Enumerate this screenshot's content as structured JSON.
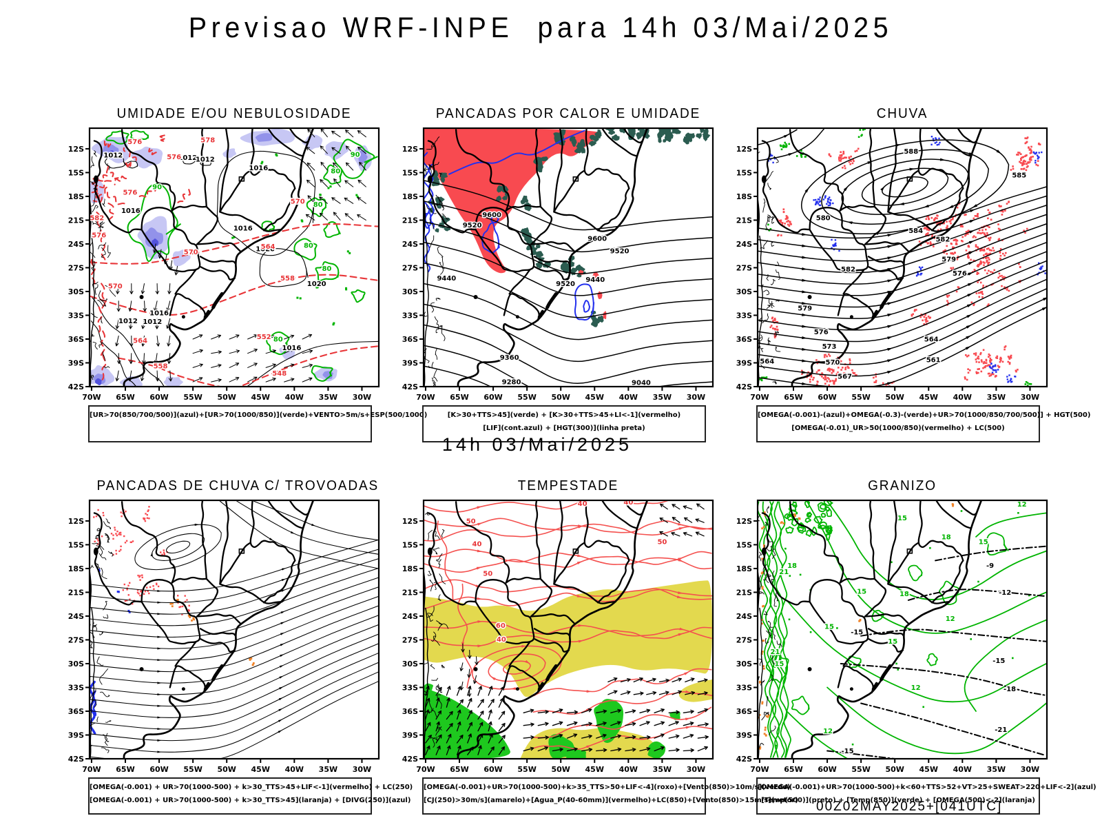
{
  "page_title": "Previsao WRF-INPE  para 14h 03/Mai/2025",
  "valid_time_label": "14h 03/Mai/2025",
  "model_run_label": "00Z02MAY2025+[041UTC]",
  "axis": {
    "lat_ticks": [
      "12S",
      "15S",
      "18S",
      "21S",
      "24S",
      "27S",
      "30S",
      "33S",
      "36S",
      "39S",
      "42S"
    ],
    "lon_ticks": [
      "70W",
      "65W",
      "60W",
      "55W",
      "50W",
      "45W",
      "40W",
      "35W",
      "30W"
    ]
  },
  "colors": {
    "red": "#e83538",
    "salmon_fill": "#f84a50",
    "teal": "#2b5c50",
    "green": "#00b400",
    "green_fill": "#1ec81e",
    "blue": "#2330ee",
    "violet_light": "#c7c7f4",
    "violet_mid": "#9292ea",
    "violet_dark": "#5353dd",
    "yellow": "#e3d94e",
    "orange": "#f08226",
    "stream_red": "#f4504e",
    "black": "#000000"
  },
  "panels": [
    {
      "title": "UMIDADE E/OU NEBULOSIDADE",
      "legend_lines": [
        "[UR>70(850/700/500)](azul)+[UR>70(1000/850)](verde)+VENTO>5m/s+ESP(500/1000)"
      ],
      "contour_labels": [
        {
          "t": "1012",
          "lon": 66.8,
          "lat": 13.1,
          "c": "k"
        },
        {
          "t": "1012",
          "lon": 55.8,
          "lat": 13.4,
          "c": "k"
        },
        {
          "t": "1012",
          "lon": 53.2,
          "lat": 13.6,
          "c": "k"
        },
        {
          "t": "1016",
          "lon": 45.3,
          "lat": 14.7,
          "c": "k"
        },
        {
          "t": "1016",
          "lon": 64.2,
          "lat": 20.1,
          "c": "k"
        },
        {
          "t": "1016",
          "lon": 47.6,
          "lat": 22.3,
          "c": "k"
        },
        {
          "t": "1020",
          "lon": 44.3,
          "lat": 24.9,
          "c": "k"
        },
        {
          "t": "1020",
          "lon": 36.7,
          "lat": 29.3,
          "c": "k"
        },
        {
          "t": "1016",
          "lon": 60.0,
          "lat": 33.0,
          "c": "k"
        },
        {
          "t": "1012",
          "lon": 64.6,
          "lat": 34.0,
          "c": "k"
        },
        {
          "t": "1012",
          "lon": 61.0,
          "lat": 34.1,
          "c": "k"
        },
        {
          "t": "1016",
          "lon": 40.4,
          "lat": 37.4,
          "c": "k"
        },
        {
          "t": "576",
          "lon": 63.6,
          "lat": 11.4,
          "c": "r"
        },
        {
          "t": "578",
          "lon": 52.8,
          "lat": 11.2,
          "c": "r"
        },
        {
          "t": "576",
          "lon": 57.8,
          "lat": 13.3,
          "c": "r"
        },
        {
          "t": "576",
          "lon": 64.3,
          "lat": 17.8,
          "c": "r"
        },
        {
          "t": "582",
          "lon": 69.2,
          "lat": 21.0,
          "c": "r"
        },
        {
          "t": "576",
          "lon": 68.9,
          "lat": 23.2,
          "c": "r"
        },
        {
          "t": "570",
          "lon": 66.5,
          "lat": 29.6,
          "c": "r"
        },
        {
          "t": "570",
          "lon": 55.3,
          "lat": 25.3,
          "c": "r"
        },
        {
          "t": "570",
          "lon": 39.5,
          "lat": 18.9,
          "c": "r"
        },
        {
          "t": "564",
          "lon": 43.9,
          "lat": 24.6,
          "c": "r"
        },
        {
          "t": "558",
          "lon": 41.0,
          "lat": 28.6,
          "c": "r"
        },
        {
          "t": "564",
          "lon": 62.8,
          "lat": 36.5,
          "c": "r"
        },
        {
          "t": "558",
          "lon": 59.8,
          "lat": 39.7,
          "c": "r"
        },
        {
          "t": "552",
          "lon": 44.5,
          "lat": 36.0,
          "c": "r"
        },
        {
          "t": "548",
          "lon": 42.2,
          "lat": 40.6,
          "c": "r"
        },
        {
          "t": "90",
          "lon": 31.0,
          "lat": 13.0,
          "c": "g"
        },
        {
          "t": "80",
          "lon": 33.9,
          "lat": 15.1,
          "c": "g"
        },
        {
          "t": "80",
          "lon": 36.5,
          "lat": 19.3,
          "c": "g"
        },
        {
          "t": "80",
          "lon": 37.9,
          "lat": 24.5,
          "c": "g"
        },
        {
          "t": "80",
          "lon": 35.2,
          "lat": 27.4,
          "c": "g"
        },
        {
          "t": "80",
          "lon": 42.4,
          "lat": 36.3,
          "c": "g"
        },
        {
          "t": "90",
          "lon": 60.3,
          "lat": 17.1,
          "c": "g"
        }
      ]
    },
    {
      "title": "PANCADAS POR CALOR E UMIDADE",
      "legend_lines": [
        "[K>30+TTS>45](verde) + [K>30+TTS>45+LI<-1](vermelho)",
        "[LIF](cont.azul) + [HGT(300)](linha preta)"
      ],
      "contour_labels": [
        {
          "t": "9600",
          "lon": 60.2,
          "lat": 20.6,
          "c": "k"
        },
        {
          "t": "9520",
          "lon": 63.1,
          "lat": 21.9,
          "c": "k"
        },
        {
          "t": "9600",
          "lon": 44.6,
          "lat": 23.6,
          "c": "k"
        },
        {
          "t": "9520",
          "lon": 49.3,
          "lat": 29.3,
          "c": "k"
        },
        {
          "t": "9520",
          "lon": 41.3,
          "lat": 25.2,
          "c": "k"
        },
        {
          "t": "9440",
          "lon": 66.9,
          "lat": 28.6,
          "c": "k"
        },
        {
          "t": "9440",
          "lon": 44.9,
          "lat": 28.8,
          "c": "k"
        },
        {
          "t": "9360",
          "lon": 57.6,
          "lat": 38.6,
          "c": "k"
        },
        {
          "t": "9280",
          "lon": 57.3,
          "lat": 41.7,
          "c": "k"
        },
        {
          "t": "9040",
          "lon": 38.1,
          "lat": 41.8,
          "c": "k"
        }
      ]
    },
    {
      "title": "CHUVA",
      "legend_lines": [
        "[OMEGA(-0.001)-(azul)+OMEGA(-0.3)-(verde)+UR>70(1000/850/700/500)]  +  HGT(500)",
        "[OMEGA(-0.01)_UR>50(1000/850)(vermelho)  +  LC(500)"
      ],
      "contour_labels": [
        {
          "t": "585",
          "lon": 31.6,
          "lat": 15.6,
          "c": "k"
        },
        {
          "t": "588",
          "lon": 47.6,
          "lat": 12.6,
          "c": "k"
        },
        {
          "t": "580",
          "lon": 60.6,
          "lat": 21.0,
          "c": "k"
        },
        {
          "t": "584",
          "lon": 46.9,
          "lat": 22.6,
          "c": "k"
        },
        {
          "t": "582",
          "lon": 56.9,
          "lat": 27.5,
          "c": "k"
        },
        {
          "t": "582",
          "lon": 42.9,
          "lat": 23.7,
          "c": "k"
        },
        {
          "t": "579",
          "lon": 63.3,
          "lat": 32.4,
          "c": "k"
        },
        {
          "t": "579",
          "lon": 42.0,
          "lat": 26.2,
          "c": "k"
        },
        {
          "t": "576",
          "lon": 60.9,
          "lat": 35.4,
          "c": "k"
        },
        {
          "t": "576",
          "lon": 40.4,
          "lat": 28.0,
          "c": "k"
        },
        {
          "t": "573",
          "lon": 59.7,
          "lat": 37.2,
          "c": "k"
        },
        {
          "t": "570",
          "lon": 59.2,
          "lat": 39.2,
          "c": "k"
        },
        {
          "t": "567",
          "lon": 57.4,
          "lat": 41.0,
          "c": "k"
        },
        {
          "t": "564",
          "lon": 44.6,
          "lat": 36.3,
          "c": "k"
        },
        {
          "t": "561",
          "lon": 44.3,
          "lat": 38.9,
          "c": "k"
        },
        {
          "t": "564",
          "lon": 68.9,
          "lat": 39.1,
          "c": "k"
        }
      ]
    },
    {
      "title": "PANCADAS DE CHUVA C/ TROVOADAS",
      "legend_lines": [
        "[OMEGA(-0.001) + UR>70(1000-500) + k>30_TTS>45+LIF<-1](vermelho) + LC(250)",
        "[OMEGA(-0.001) + UR>70(1000-500) + k>30_TTS>45](laranja) + [DIVG(250)](azul)"
      ],
      "contour_labels": []
    },
    {
      "title": "TEMPESTADE",
      "legend_lines": [
        "[OMEGA(-0.001)+UR>70(1000-500)+k>35_TTS>50+LIF<-4](roxo)+[Vento(850)>10m/s](verde)",
        "[CJ(250)>30m/s](amarelo)+[Agua_P(40-60mm)](vermelho)+LC(850)+[Vento(850)>15m/s](vetor)"
      ],
      "contour_labels": [
        {
          "t": "40",
          "lon": 46.8,
          "lat": 10.1,
          "c": "r"
        },
        {
          "t": "50",
          "lon": 63.3,
          "lat": 12.3,
          "c": "r"
        },
        {
          "t": "40",
          "lon": 62.4,
          "lat": 15.2,
          "c": "r"
        },
        {
          "t": "50",
          "lon": 60.8,
          "lat": 18.9,
          "c": "r"
        },
        {
          "t": "60",
          "lon": 58.9,
          "lat": 25.5,
          "c": "r"
        },
        {
          "t": "40",
          "lon": 58.8,
          "lat": 27.2,
          "c": "r"
        },
        {
          "t": "40",
          "lon": 40.0,
          "lat": 9.9,
          "c": "r"
        },
        {
          "t": "50",
          "lon": 35.0,
          "lat": 14.9,
          "c": "r"
        }
      ]
    },
    {
      "title": "GRANIZO",
      "legend_lines": [
        "[OMEGA(-0.001)+UR>70(1000-500)+k<60+TTS>52+VT>25+SWEAT>220+LIF<-2](azul)",
        "[Temp(500)](preto)  +  [Temp(850)](verde)  +  [OMEGA(500)<-2](laranja)"
      ],
      "contour_labels": [
        {
          "t": "15",
          "lon": 48.9,
          "lat": 11.9,
          "c": "g"
        },
        {
          "t": "18",
          "lon": 42.4,
          "lat": 14.3,
          "c": "g"
        },
        {
          "t": "15",
          "lon": 36.9,
          "lat": 14.9,
          "c": "g"
        },
        {
          "t": "18",
          "lon": 65.2,
          "lat": 17.9,
          "c": "g"
        },
        {
          "t": "21",
          "lon": 66.4,
          "lat": 18.7,
          "c": "g"
        },
        {
          "t": "15",
          "lon": 54.9,
          "lat": 21.2,
          "c": "g"
        },
        {
          "t": "18",
          "lon": 48.6,
          "lat": 21.5,
          "c": "g"
        },
        {
          "t": "12",
          "lon": 41.8,
          "lat": 24.6,
          "c": "g"
        },
        {
          "t": "15",
          "lon": 59.7,
          "lat": 25.6,
          "c": "g"
        },
        {
          "t": "21",
          "lon": 67.7,
          "lat": 28.8,
          "c": "g"
        },
        {
          "t": "15",
          "lon": 67.1,
          "lat": 30.3,
          "c": "g"
        },
        {
          "t": "15",
          "lon": 50.3,
          "lat": 27.5,
          "c": "g"
        },
        {
          "t": "12",
          "lon": 46.9,
          "lat": 33.3,
          "c": "g"
        },
        {
          "t": "12",
          "lon": 59.9,
          "lat": 38.8,
          "c": "g"
        },
        {
          "t": "12",
          "lon": 31.2,
          "lat": 10.2,
          "c": "g"
        },
        {
          "t": "-9",
          "lon": 35.9,
          "lat": 17.9,
          "c": "k"
        },
        {
          "t": "-12",
          "lon": 33.7,
          "lat": 21.3,
          "c": "k"
        },
        {
          "t": "-15",
          "lon": 34.6,
          "lat": 29.9,
          "c": "k"
        },
        {
          "t": "-18",
          "lon": 33.0,
          "lat": 33.5,
          "c": "k"
        },
        {
          "t": "-21",
          "lon": 34.3,
          "lat": 38.6,
          "c": "k"
        },
        {
          "t": "-15",
          "lon": 57.0,
          "lat": 41.3,
          "c": "k"
        },
        {
          "t": "-15",
          "lon": 55.6,
          "lat": 26.3,
          "c": "k"
        }
      ]
    }
  ]
}
